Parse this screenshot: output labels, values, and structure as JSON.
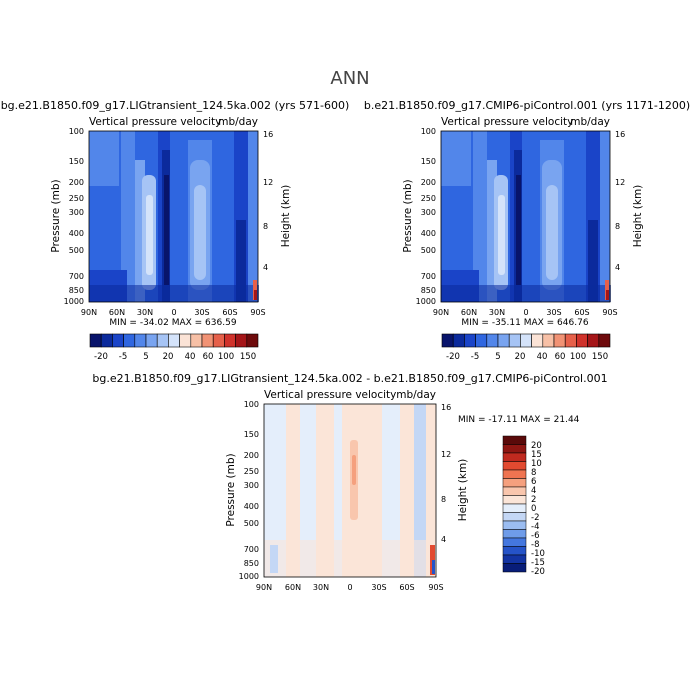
{
  "page_title": "ANN",
  "colors": {
    "palette_main": [
      "#08146b",
      "#0b2a9c",
      "#1a44c8",
      "#2f66e0",
      "#5286ea",
      "#79a4f0",
      "#a6c4f5",
      "#d4e3fa",
      "#fbe3d6",
      "#f7c0a6",
      "#f19274",
      "#e6604a",
      "#d0322b",
      "#a51518",
      "#6e0a0c"
    ],
    "palette_diff": [
      "#5a0a0a",
      "#8e1612",
      "#c02a1f",
      "#e24a30",
      "#ef7451",
      "#f5a07e",
      "#f9c6ad",
      "#fbe5d8",
      "#e4eefb",
      "#c4d7f5",
      "#9bbdf1",
      "#6f9ce9",
      "#4477df",
      "#2553c8",
      "#1334a3",
      "#081d79"
    ]
  },
  "chart_data": [
    {
      "type": "heatmap",
      "name": "panel-a",
      "title": "bg.e21.B1850.f09_g17.LIGtransient_124.5ka.002 (yrs 571-600)",
      "subtitle_left": "Vertical pressure velocity",
      "subtitle_right": "mb/day",
      "ylabel": "Pressure (mb)",
      "ylabel_right": "Height (km)",
      "x_ticks": [
        "90N",
        "60N",
        "30N",
        "0",
        "30S",
        "60S",
        "90S"
      ],
      "y_ticks": [
        "100",
        "150",
        "200",
        "250",
        "300",
        "400",
        "500",
        "700",
        "850",
        "1000"
      ],
      "y_tick_values": [
        100,
        150,
        200,
        250,
        300,
        400,
        500,
        700,
        850,
        1000
      ],
      "y_right_ticks": [
        "16",
        "12",
        "8",
        "4"
      ],
      "y_right_values": [
        16,
        12,
        8,
        4
      ],
      "stats": "MIN = -34.02   MAX = 636.59",
      "colorbar_labels": [
        "-20",
        "-5",
        "5",
        "20",
        "40",
        "60",
        "100",
        "150"
      ],
      "xlim": [
        90,
        -90
      ],
      "ylim": [
        100,
        1000
      ]
    },
    {
      "type": "heatmap",
      "name": "panel-b",
      "title": "b.e21.B1850.f09_g17.CMIP6-piControl.001 (yrs 1171-1200)",
      "subtitle_left": "Vertical pressure velocity",
      "subtitle_right": "mb/day",
      "ylabel": "Pressure (mb)",
      "ylabel_right": "Height (km)",
      "x_ticks": [
        "90N",
        "60N",
        "30N",
        "0",
        "30S",
        "60S",
        "90S"
      ],
      "y_ticks": [
        "100",
        "150",
        "200",
        "250",
        "300",
        "400",
        "500",
        "700",
        "850",
        "1000"
      ],
      "y_tick_values": [
        100,
        150,
        200,
        250,
        300,
        400,
        500,
        700,
        850,
        1000
      ],
      "y_right_ticks": [
        "16",
        "12",
        "8",
        "4"
      ],
      "y_right_values": [
        16,
        12,
        8,
        4
      ],
      "stats": "MIN = -35.11   MAX = 646.76",
      "colorbar_labels": [
        "-20",
        "-5",
        "5",
        "20",
        "40",
        "60",
        "100",
        "150"
      ],
      "xlim": [
        90,
        -90
      ],
      "ylim": [
        100,
        1000
      ]
    },
    {
      "type": "heatmap",
      "name": "panel-diff",
      "title": "bg.e21.B1850.f09_g17.LIGtransient_124.5ka.002 - b.e21.B1850.f09_g17.CMIP6-piControl.001",
      "subtitle_left": "Vertical pressure velocity",
      "subtitle_right": "mb/day",
      "ylabel": "Pressure (mb)",
      "ylabel_right": "Height (km)",
      "x_ticks": [
        "90N",
        "60N",
        "30N",
        "0",
        "30S",
        "60S",
        "90S"
      ],
      "y_ticks": [
        "100",
        "150",
        "200",
        "250",
        "300",
        "400",
        "500",
        "700",
        "850",
        "1000"
      ],
      "y_tick_values": [
        100,
        150,
        200,
        250,
        300,
        400,
        500,
        700,
        850,
        1000
      ],
      "y_right_ticks": [
        "16",
        "12",
        "8",
        "4"
      ],
      "y_right_values": [
        16,
        12,
        8,
        4
      ],
      "stats": "MIN = -17.11   MAX =  21.44",
      "colorbar_labels": [
        "20",
        "15",
        "10",
        "8",
        "6",
        "4",
        "2",
        "0",
        "-2",
        "-4",
        "-6",
        "-8",
        "-10",
        "-15",
        "-20"
      ],
      "xlim": [
        90,
        -90
      ],
      "ylim": [
        100,
        1000
      ]
    }
  ]
}
